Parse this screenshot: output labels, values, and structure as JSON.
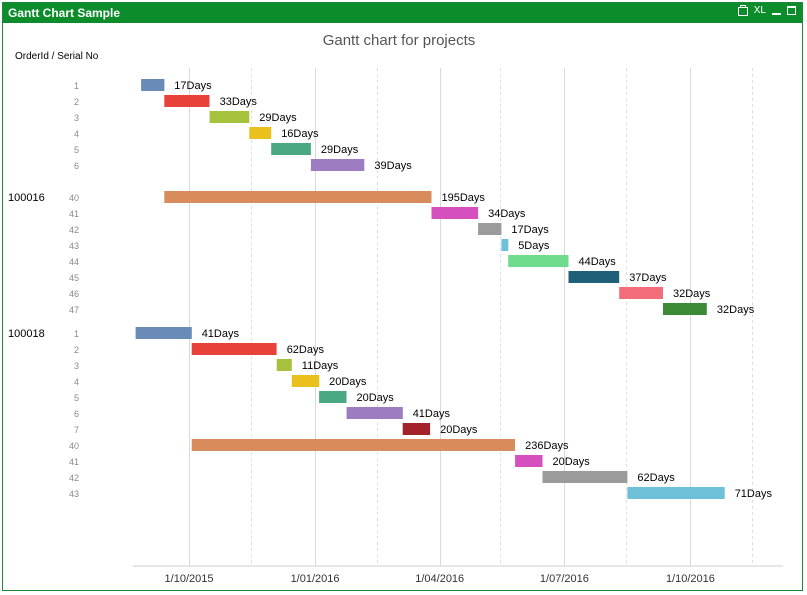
{
  "window": {
    "title": "Gantt Chart Sample",
    "xl_label": "XL"
  },
  "icons": {
    "print": "print-icon",
    "minimize": "minimize-icon",
    "maximize": "maximize-icon"
  },
  "colors": {
    "titlebar": "#0d8c2c",
    "grid": "#d9d9d9",
    "title_text": "#555555",
    "axis_text": "#333333",
    "row_label": "#8a8a8a"
  },
  "chart_data": {
    "type": "bar",
    "orientation": "horizontal-gantt",
    "title": "Gantt chart for projects",
    "dimension_label": "OrderId / Serial No",
    "x_axis_type": "date",
    "xlim": [
      "2015-06-01",
      "2017-01-31"
    ],
    "x_ticks": [
      "1/10/2015",
      "1/01/2016",
      "1/04/2016",
      "1/07/2016",
      "1/10/2016"
    ],
    "x_tick_dates": [
      "2015-10-01",
      "2016-01-01",
      "2016-04-01",
      "2016-07-01",
      "2016-10-01"
    ],
    "x_minor_grid_dates": [
      "2015-11-15",
      "2016-02-15",
      "2016-05-15",
      "2016-08-15",
      "2016-11-15"
    ],
    "grid": true,
    "groups": [
      {
        "order_id": "",
        "tasks": [
          {
            "serial": "1",
            "start": "2015-08-27",
            "duration_days": 17,
            "label": "17Days",
            "color": "#6a8ab8"
          },
          {
            "serial": "2",
            "start": "2015-09-13",
            "duration_days": 33,
            "label": "33Days",
            "color": "#e8413a"
          },
          {
            "serial": "3",
            "start": "2015-10-16",
            "duration_days": 29,
            "label": "29Days",
            "color": "#a6c23d"
          },
          {
            "serial": "4",
            "start": "2015-11-14",
            "duration_days": 16,
            "label": "16Days",
            "color": "#e9c01c"
          },
          {
            "serial": "5",
            "start": "2015-11-30",
            "duration_days": 29,
            "label": "29Days",
            "color": "#4aa983"
          },
          {
            "serial": "6",
            "start": "2015-12-29",
            "duration_days": 39,
            "label": "39Days",
            "color": "#9e7cc1"
          }
        ]
      },
      {
        "order_id": "100016",
        "tasks": [
          {
            "serial": "40",
            "start": "2015-09-13",
            "duration_days": 195,
            "label": "195Days",
            "color": "#d88c5c"
          },
          {
            "serial": "41",
            "start": "2016-03-26",
            "duration_days": 34,
            "label": "34Days",
            "color": "#d64fbf"
          },
          {
            "serial": "42",
            "start": "2016-04-29",
            "duration_days": 17,
            "label": "17Days",
            "color": "#9b9b9b"
          },
          {
            "serial": "43",
            "start": "2016-05-16",
            "duration_days": 5,
            "label": "5Days",
            "color": "#6dc0d8"
          },
          {
            "serial": "44",
            "start": "2016-05-21",
            "duration_days": 44,
            "label": "44Days",
            "color": "#6edb8e"
          },
          {
            "serial": "45",
            "start": "2016-07-04",
            "duration_days": 37,
            "label": "37Days",
            "color": "#1f5f7a"
          },
          {
            "serial": "46",
            "start": "2016-08-10",
            "duration_days": 32,
            "label": "32Days",
            "color": "#f26c7a"
          },
          {
            "serial": "47",
            "start": "2016-09-11",
            "duration_days": 32,
            "label": "32Days",
            "color": "#3c8a36"
          }
        ]
      },
      {
        "order_id": "100018",
        "tasks": [
          {
            "serial": "1",
            "start": "2015-08-23",
            "duration_days": 41,
            "label": "41Days",
            "color": "#6a8ab8"
          },
          {
            "serial": "2",
            "start": "2015-10-03",
            "duration_days": 62,
            "label": "62Days",
            "color": "#e8413a"
          },
          {
            "serial": "3",
            "start": "2015-12-04",
            "duration_days": 11,
            "label": "11Days",
            "color": "#a6c23d"
          },
          {
            "serial": "4",
            "start": "2015-12-15",
            "duration_days": 20,
            "label": "20Days",
            "color": "#e9c01c"
          },
          {
            "serial": "5",
            "start": "2016-01-04",
            "duration_days": 20,
            "label": "20Days",
            "color": "#4aa983"
          },
          {
            "serial": "6",
            "start": "2016-01-24",
            "duration_days": 41,
            "label": "41Days",
            "color": "#9e7cc1"
          },
          {
            "serial": "7",
            "start": "2016-03-05",
            "duration_days": 20,
            "label": "20Days",
            "color": "#a3232a"
          },
          {
            "serial": "40",
            "start": "2015-10-03",
            "duration_days": 236,
            "label": "236Days",
            "color": "#d88c5c"
          },
          {
            "serial": "41",
            "start": "2016-05-26",
            "duration_days": 20,
            "label": "20Days",
            "color": "#d64fbf"
          },
          {
            "serial": "42",
            "start": "2016-06-15",
            "duration_days": 62,
            "label": "62Days",
            "color": "#9b9b9b"
          },
          {
            "serial": "43",
            "start": "2016-08-16",
            "duration_days": 71,
            "label": "71Days",
            "color": "#6dc0d8"
          }
        ]
      }
    ]
  }
}
